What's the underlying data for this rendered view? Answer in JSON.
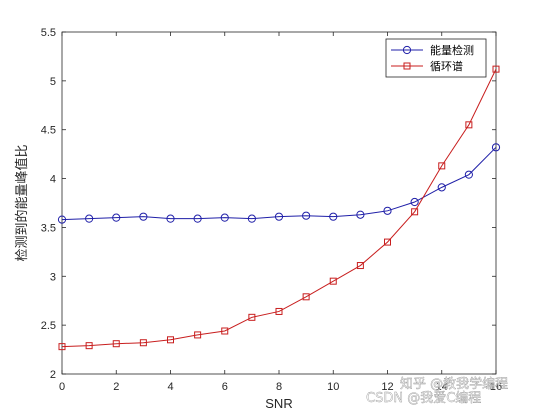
{
  "chart_data": {
    "type": "line",
    "title": "",
    "xlabel": "SNR",
    "ylabel": "检测到的能量峰值比",
    "xlim": [
      0,
      16
    ],
    "ylim": [
      2,
      5.5
    ],
    "xticks": [
      0,
      2,
      4,
      6,
      8,
      10,
      12,
      14,
      16
    ],
    "xtick_labels": [
      "0",
      "2",
      "4",
      "6",
      "8",
      "10",
      "12",
      "14",
      "16"
    ],
    "yticks": [
      2,
      2.5,
      3,
      3.5,
      4,
      4.5,
      5,
      5.5
    ],
    "ytick_labels": [
      "2",
      "2.5",
      "3",
      "3.5",
      "4",
      "4.5",
      "5",
      "5.5"
    ],
    "grid": false,
    "legend_position": "top-right",
    "x": [
      0,
      1,
      2,
      3,
      4,
      5,
      6,
      7,
      8,
      9,
      10,
      11,
      12,
      13,
      14,
      15,
      16
    ],
    "series": [
      {
        "name": "能量检测",
        "color": "#1f1fa8",
        "marker": "circle",
        "values": [
          3.58,
          3.59,
          3.6,
          3.61,
          3.59,
          3.59,
          3.6,
          3.59,
          3.61,
          3.62,
          3.61,
          3.63,
          3.67,
          3.76,
          3.91,
          4.04,
          4.32
        ]
      },
      {
        "name": "循环谱",
        "color": "#c81e1e",
        "marker": "square",
        "values": [
          2.28,
          2.29,
          2.31,
          2.32,
          2.35,
          2.4,
          2.44,
          2.58,
          2.64,
          2.79,
          2.95,
          3.11,
          3.35,
          3.66,
          4.13,
          4.55,
          5.12
        ]
      }
    ]
  },
  "watermark": {
    "line1": "知乎 @教我学编程",
    "line2": "CSDN @我爱C编程"
  }
}
